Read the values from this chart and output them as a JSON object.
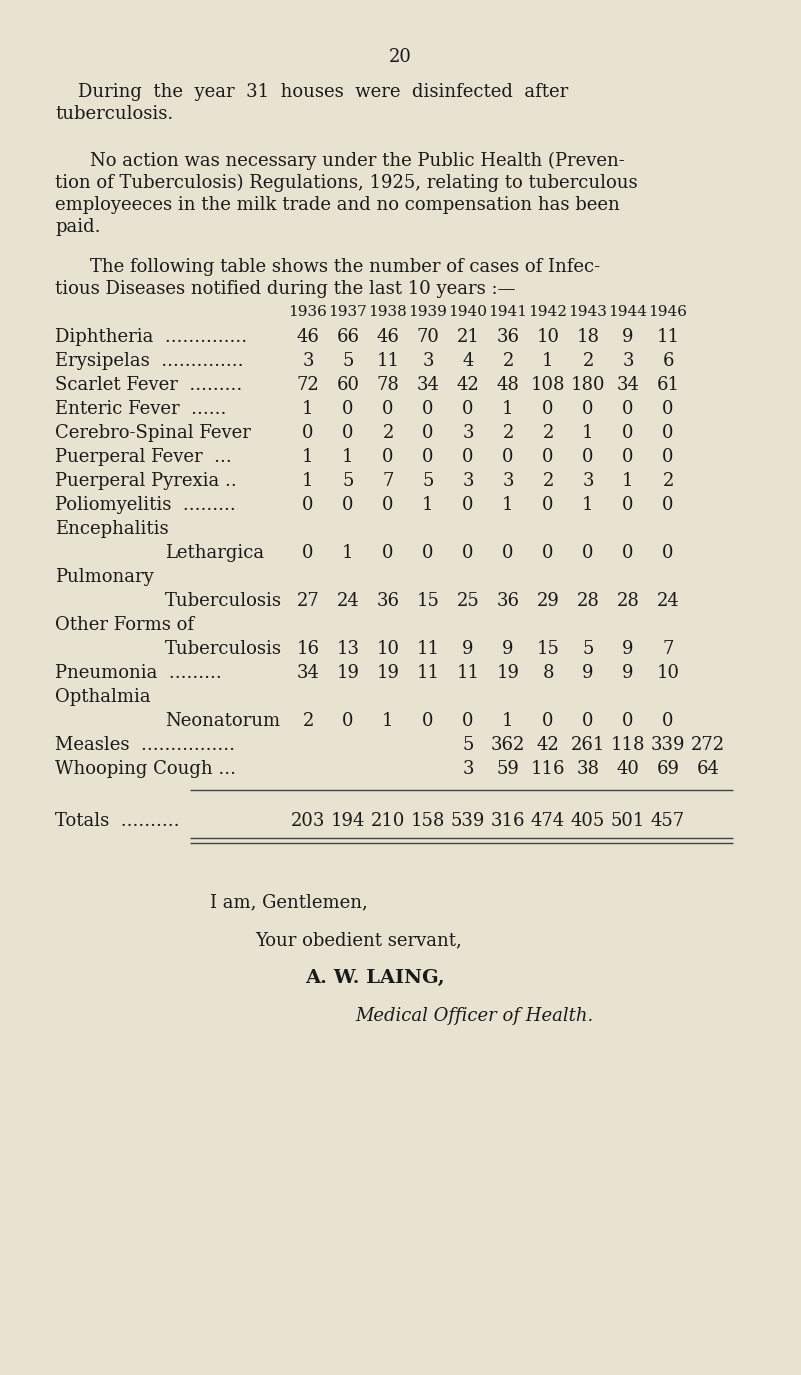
{
  "background_color": "#e8e2d0",
  "page_number": "20",
  "text_color": "#1a1a1a",
  "para1_line1": "During  the  year  31  houses  were  disinfected  after",
  "para1_line2": "tuberculosis.",
  "para2_line1": "No action was necessary under the Public Health (Preven-",
  "para2_line2": "tion of Tuberculosis) Regulations, 1925, relating to tuberculous",
  "para2_line3": "employeeces in the milk trade and no compensation has been",
  "para2_line4": "paid.",
  "para3_line1": "The following table shows the number of cases of Infec-",
  "para3_line2": "tious Diseases notified during the last 10 years :—",
  "years": [
    "1936",
    "1937",
    "1938",
    "1939",
    "1940",
    "1941",
    "1942",
    "1943",
    "1944",
    "1946"
  ],
  "closing1": "I am, Gentlemen,",
  "closing2": "Your obedient servant,",
  "closing3": "A. W. LAING,",
  "closing4": "Medical Officer of Health.",
  "totals_values": [
    "203",
    "194",
    "210",
    "158",
    "539",
    "316",
    "474",
    "405",
    "501",
    "457"
  ],
  "measles_vals": [
    "5",
    "362",
    "42",
    "261",
    "118",
    "339",
    "272"
  ],
  "whooping_vals": [
    "3",
    "59",
    "116",
    "38",
    "40",
    "69",
    "64"
  ]
}
